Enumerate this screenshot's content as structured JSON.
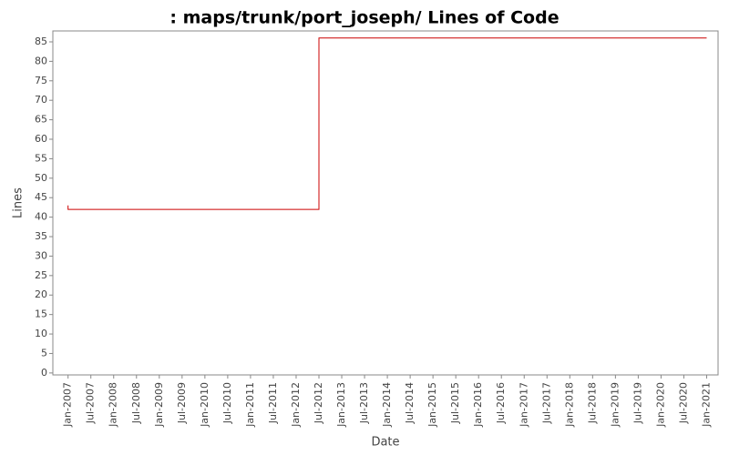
{
  "chart_data": {
    "type": "line",
    "step": true,
    "title": ": maps/trunk/port_joseph/ Lines of Code",
    "x_label": "Date",
    "y_label": "Lines",
    "x": [
      "2007-01",
      "2007-01",
      "2012-07",
      "2021-01"
    ],
    "series": [
      {
        "name": "Lines",
        "color": "#cc0000",
        "values": [
          43,
          42,
          86,
          86
        ]
      }
    ],
    "xlim": [
      "2006-09",
      "2021-04"
    ],
    "xticks": [
      {
        "value": "2007-01",
        "label": "Jan-2007"
      },
      {
        "value": "2007-07",
        "label": "Jul-2007"
      },
      {
        "value": "2008-01",
        "label": "Jan-2008"
      },
      {
        "value": "2008-07",
        "label": "Jul-2008"
      },
      {
        "value": "2009-01",
        "label": "Jan-2009"
      },
      {
        "value": "2009-07",
        "label": "Jul-2009"
      },
      {
        "value": "2010-01",
        "label": "Jan-2010"
      },
      {
        "value": "2010-07",
        "label": "Jul-2010"
      },
      {
        "value": "2011-01",
        "label": "Jan-2011"
      },
      {
        "value": "2011-07",
        "label": "Jul-2011"
      },
      {
        "value": "2012-01",
        "label": "Jan-2012"
      },
      {
        "value": "2012-07",
        "label": "Jul-2012"
      },
      {
        "value": "2013-01",
        "label": "Jan-2013"
      },
      {
        "value": "2013-07",
        "label": "Jul-2013"
      },
      {
        "value": "2014-01",
        "label": "Jan-2014"
      },
      {
        "value": "2014-07",
        "label": "Jul-2014"
      },
      {
        "value": "2015-01",
        "label": "Jan-2015"
      },
      {
        "value": "2015-07",
        "label": "Jul-2015"
      },
      {
        "value": "2016-01",
        "label": "Jan-2016"
      },
      {
        "value": "2016-07",
        "label": "Jul-2016"
      },
      {
        "value": "2017-01",
        "label": "Jan-2017"
      },
      {
        "value": "2017-07",
        "label": "Jul-2017"
      },
      {
        "value": "2018-01",
        "label": "Jan-2018"
      },
      {
        "value": "2018-07",
        "label": "Jul-2018"
      },
      {
        "value": "2019-01",
        "label": "Jan-2019"
      },
      {
        "value": "2019-07",
        "label": "Jul-2019"
      },
      {
        "value": "2020-01",
        "label": "Jan-2020"
      },
      {
        "value": "2020-07",
        "label": "Jul-2020"
      },
      {
        "value": "2021-01",
        "label": "Jan-2021"
      }
    ],
    "ylim": [
      -0.5,
      87.8
    ],
    "yticks": [
      0,
      5,
      10,
      15,
      20,
      25,
      30,
      35,
      40,
      45,
      50,
      55,
      60,
      65,
      70,
      75,
      80,
      85
    ],
    "grid": false
  }
}
